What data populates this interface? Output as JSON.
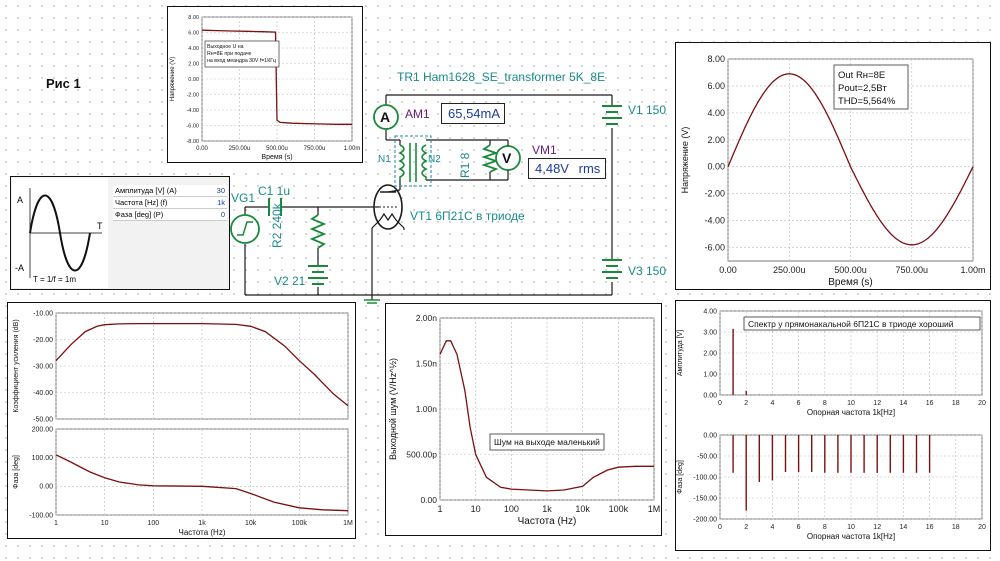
{
  "fig_label": "Рис 1",
  "colors": {
    "trace": "#7a1010",
    "wire": "#1a1a1a",
    "comp": "#1a8a3a",
    "label": "#1a8a8a",
    "meter": "#6a1a7a",
    "readout": "#1a3c9a",
    "grid": "#bdbdbd"
  },
  "circuit": {
    "tr1": "TR1 Ham1628_SE_transformer 5K_8E",
    "am1_name": "AM1",
    "am1_value": "65,54mA",
    "vm1_name": "VM1",
    "vm1_value": "4,48V",
    "vm1_unit": "rms",
    "am_symbol": "A",
    "vm_symbol": "V",
    "v1": "V1 150",
    "v3": "V3 150",
    "v2": "V2 21",
    "vg1": "VG1",
    "c1": "C1 1u",
    "r2": "R2 240k",
    "r1": "R1 8",
    "n1": "N1",
    "n2": "N2",
    "vt1": "VT1 6П21С в триоде"
  },
  "generator": {
    "a_top": "A",
    "a_bottom": "-A",
    "t_axis": "T",
    "formula": "T = 1/f = 1m",
    "params": [
      {
        "name": "Амплитуда [V] (A)",
        "value": "30"
      },
      {
        "name": "Частота [Hz] (f)",
        "value": "1k"
      },
      {
        "name": "Фаза [deg] (P)",
        "value": "0"
      }
    ]
  },
  "chart_data": [
    {
      "id": "square-response",
      "type": "line",
      "xlabel": "Время (s)",
      "ylabel": "Напряжение (V)",
      "annotation": "Выходное U на Rн=8Е при подаче на вход меандра 30V f=1КГц",
      "x_ticks": [
        "0.00",
        "250.00u",
        "500.00u",
        "750.00u",
        "1.00m"
      ],
      "y_ticks": [
        "8.00",
        "6.00",
        "4.00",
        "2.00",
        "0.00",
        "-2.00",
        "-4.00",
        "-6.00",
        "-8.00"
      ],
      "xlim": [
        0,
        0.001
      ],
      "ylim": [
        -8,
        8
      ],
      "x": [
        0,
        1e-05,
        0.0001,
        0.0002,
        0.0003,
        0.0004,
        0.00049,
        0.0005,
        0.00052,
        0.0006,
        0.0007,
        0.0008,
        0.0009,
        0.00097,
        0.001
      ],
      "y": [
        6.3,
        6.3,
        6.25,
        6.2,
        6.15,
        6.1,
        6.05,
        -5.3,
        -5.6,
        -5.7,
        -5.75,
        -5.8,
        -5.85,
        -5.85,
        -5.85
      ]
    },
    {
      "id": "sine-output",
      "type": "line",
      "xlabel": "Время (s)",
      "ylabel": "Напряжение (V)",
      "legend": [
        "Out Rн=8E",
        "Pout=2,5Вт",
        "THD=5,564%"
      ],
      "x_ticks": [
        "0.00",
        "250.00u",
        "500.00u",
        "750.00u",
        "1.00m"
      ],
      "y_ticks": [
        "8.00",
        "6.00",
        "4.00",
        "2.00",
        "0.00",
        "-2.00",
        "-4.00",
        "-6.00"
      ],
      "xlim": [
        0,
        0.001
      ],
      "ylim": [
        -7,
        8
      ],
      "amplitude_pos": 6.9,
      "amplitude_neg": 5.8,
      "period": 0.001
    },
    {
      "id": "gain",
      "type": "line",
      "xscale": "log",
      "ylabel": "Коэффициент усиления (dB)",
      "x_ticks": [
        "1",
        "10",
        "100",
        "1k",
        "10k",
        "100k",
        "1M"
      ],
      "y_ticks": [
        "-10.00",
        "-20.00",
        "-30.00",
        "-40.00",
        "-50.00"
      ],
      "xlim": [
        1,
        1000000
      ],
      "ylim": [
        -50,
        -10
      ],
      "x": [
        1,
        2,
        4,
        7,
        10,
        20,
        50,
        100,
        1000,
        5000,
        10000,
        20000,
        50000,
        100000,
        200000,
        500000,
        1000000
      ],
      "y": [
        -28,
        -22,
        -17,
        -15,
        -14.4,
        -14.1,
        -14,
        -14,
        -14,
        -14.3,
        -15,
        -17,
        -22.5,
        -28,
        -33,
        -40.5,
        -45
      ]
    },
    {
      "id": "phase",
      "type": "line",
      "xscale": "log",
      "xlabel": "Частота (Hz)",
      "ylabel": "Фаза [deg]",
      "x_ticks": [
        "1",
        "10",
        "100",
        "1k",
        "10k",
        "100k",
        "1M"
      ],
      "y_ticks": [
        "200.00",
        "100.00",
        "0.00",
        "-100.00"
      ],
      "xlim": [
        1,
        1000000
      ],
      "ylim": [
        -100,
        200
      ],
      "x": [
        1,
        2,
        5,
        10,
        20,
        50,
        100,
        1000,
        5000,
        10000,
        30000,
        100000,
        300000,
        1000000
      ],
      "y": [
        110,
        85,
        50,
        30,
        15,
        5,
        2,
        0,
        -8,
        -25,
        -55,
        -75,
        -82,
        -85
      ]
    },
    {
      "id": "noise",
      "type": "line",
      "xscale": "log",
      "xlabel": "Частота (Hz)",
      "ylabel": "Выходной шум (V/Hz^½)",
      "annotation": "Шум на выходе маленький",
      "x_ticks": [
        "1",
        "10",
        "100",
        "1k",
        "10k",
        "100k",
        "1M"
      ],
      "y_ticks": [
        "2.00n",
        "1.50n",
        "1.00n",
        "500.00p",
        "0.00"
      ],
      "xlim": [
        1,
        1000000
      ],
      "ylim": [
        0,
        2
      ],
      "x": [
        1,
        1.5,
        2,
        3,
        5,
        7,
        10,
        20,
        50,
        100,
        300,
        1000,
        3000,
        10000,
        20000,
        50000,
        100000,
        300000,
        1000000
      ],
      "y": [
        1.6,
        1.75,
        1.75,
        1.6,
        1.2,
        0.8,
        0.5,
        0.25,
        0.14,
        0.12,
        0.11,
        0.1,
        0.11,
        0.15,
        0.25,
        0.33,
        0.36,
        0.37,
        0.37
      ]
    },
    {
      "id": "spectrum-amplitude",
      "type": "bar",
      "xlabel": "Опорная частота 1k[Hz]",
      "ylabel": "Амплитуда [V]",
      "annotation": "Спектр у прямонакальной 6П21С в триоде хороший",
      "x_ticks": [
        "0",
        "2",
        "4",
        "6",
        "8",
        "10",
        "12",
        "14",
        "16",
        "18",
        "20"
      ],
      "y_ticks": [
        "4.00",
        "3.00",
        "2.00",
        "1.00",
        "0.00"
      ],
      "xlim": [
        0,
        20
      ],
      "ylim": [
        0,
        4
      ],
      "x": [
        1,
        2,
        3,
        4,
        5,
        6,
        7,
        8,
        9,
        10,
        11,
        12,
        13,
        14,
        15,
        16
      ],
      "y": [
        3.15,
        0.2,
        0.02,
        0.02,
        0.01,
        0.01,
        0.01,
        0.01,
        0.01,
        0.01,
        0.01,
        0.01,
        0.01,
        0.01,
        0.01,
        0.01
      ]
    },
    {
      "id": "spectrum-phase",
      "type": "bar",
      "xlabel": "Опорная частота 1k[Hz]",
      "ylabel": "Фаза [deg]",
      "x_ticks": [
        "0",
        "2",
        "4",
        "6",
        "8",
        "10",
        "12",
        "14",
        "16",
        "18",
        "20"
      ],
      "y_ticks": [
        "0.00",
        "-50.00",
        "-100.00",
        "-150.00",
        "-200.00"
      ],
      "xlim": [
        0,
        20
      ],
      "ylim": [
        -200,
        0
      ],
      "x": [
        1,
        2,
        3,
        4,
        5,
        6,
        7,
        8,
        9,
        10,
        11,
        12,
        13,
        14,
        15,
        16
      ],
      "y": [
        -90,
        -180,
        -112,
        -108,
        -88,
        -88,
        -88,
        -90,
        -90,
        -90,
        -90,
        -90,
        -90,
        -90,
        -90,
        -90
      ]
    }
  ]
}
